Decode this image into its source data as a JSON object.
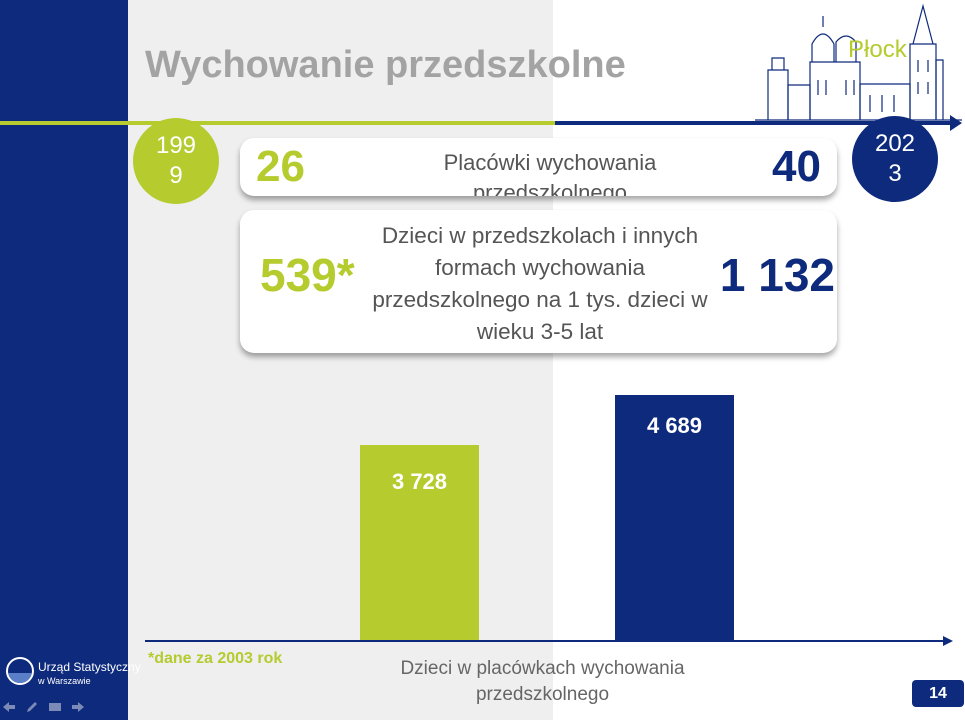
{
  "slide": {
    "title": "Wychowanie przedszkolne",
    "city": "Płock",
    "page_number": "14"
  },
  "timeline": {
    "start_year": "199\n9",
    "end_year": "202\n3"
  },
  "cards": [
    {
      "start_value": "26",
      "label": "Placówki wychowania przedszkolnego",
      "end_value": "40"
    },
    {
      "start_value": "539*",
      "label": "Dzieci w przedszkolach i innych formach wychowania przedszkolnego na 1 tys. dzieci w wieku 3-5 lat",
      "end_value": "1 132"
    }
  ],
  "chart_data": {
    "type": "bar",
    "categories": [
      "1999",
      "2023"
    ],
    "values": [
      3728,
      4689
    ],
    "value_labels": [
      "3 728",
      "4 689"
    ],
    "xlabel": "Dzieci w placówkach wychowania przedszkolnego",
    "colors": [
      "#b5cb2e",
      "#0e2a7d"
    ]
  },
  "footnote": "*dane za 2003 rok",
  "logo": {
    "name": "Urząd Statystyczny",
    "sub": "w Warszawie"
  },
  "nav_icons": [
    "arrow-left-icon",
    "pen-icon",
    "screen-icon",
    "arrow-right-icon"
  ],
  "colors": {
    "navy": "#0e2a7d",
    "lime": "#b5cb2e",
    "grey_text": "#a3a3a3"
  }
}
